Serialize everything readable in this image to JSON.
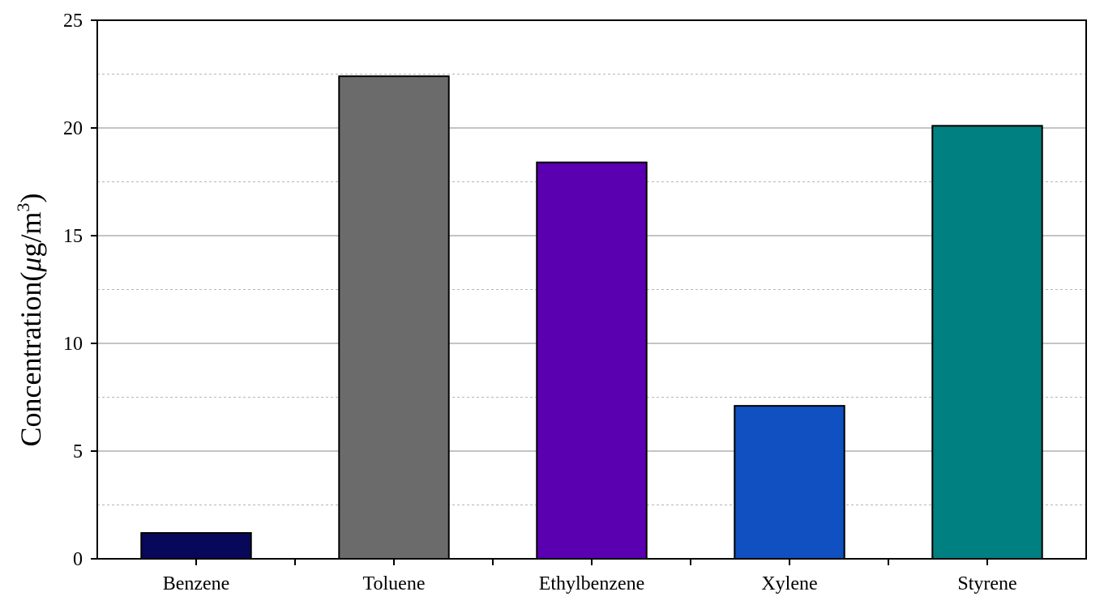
{
  "chart_data": {
    "type": "bar",
    "categories": [
      "Benzene",
      "Toluene",
      "Ethylbenzene",
      "Xylene",
      "Styrene"
    ],
    "values": [
      1.2,
      22.4,
      18.4,
      7.1,
      20.1
    ],
    "colors": [
      "#08085a",
      "#6b6b6b",
      "#5a00b0",
      "#1050c0",
      "#008080"
    ],
    "ylabel": {
      "main": "Concentration(",
      "mu": "μ",
      "unit": "g/m",
      "sup": "3",
      "close": ")"
    },
    "ylim": [
      0,
      25
    ],
    "yticks": [
      0,
      5,
      10,
      15,
      20,
      25
    ],
    "yticks_labels": [
      "0",
      "5",
      "10",
      "15",
      "20",
      "25"
    ],
    "minor_grid": [
      2.5,
      7.5,
      12.5,
      17.5,
      22.5
    ],
    "grid": true
  }
}
